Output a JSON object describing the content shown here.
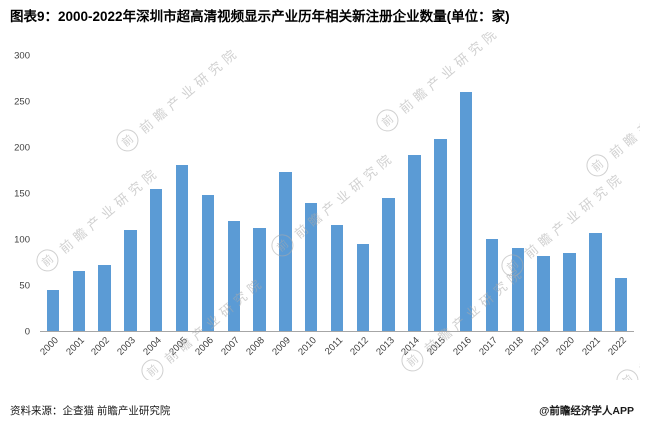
{
  "title": "图表9：2000-2022年深圳市超高清视频显示产业历年相关新注册企业数量(单位：家)",
  "footer": {
    "source": "资料来源：企查猫 前瞻产业研究院",
    "credit": "@前瞻经济学人APP"
  },
  "watermark": {
    "logo": "前",
    "text": "前瞻产业研究院"
  },
  "chart_data": {
    "type": "bar",
    "title": "2000-2022年深圳市超高清视频显示产业历年相关新注册企业数量",
    "unit": "家",
    "categories": [
      "2000",
      "2001",
      "2002",
      "2003",
      "2004",
      "2005",
      "2006",
      "2007",
      "2008",
      "2009",
      "2010",
      "2011",
      "2012",
      "2013",
      "2014",
      "2015",
      "2016",
      "2017",
      "2018",
      "2019",
      "2020",
      "2021",
      "2022"
    ],
    "values": [
      45,
      65,
      72,
      110,
      155,
      181,
      148,
      120,
      112,
      173,
      139,
      115,
      95,
      145,
      192,
      209,
      261,
      100,
      90,
      82,
      85,
      107,
      58
    ],
    "xlabel": "",
    "ylabel": "",
    "ylim": [
      0,
      300
    ],
    "yticks": [
      0,
      50,
      100,
      150,
      200,
      250,
      300
    ],
    "bar_color": "#5B9BD5",
    "grid": false,
    "legend": "none"
  }
}
